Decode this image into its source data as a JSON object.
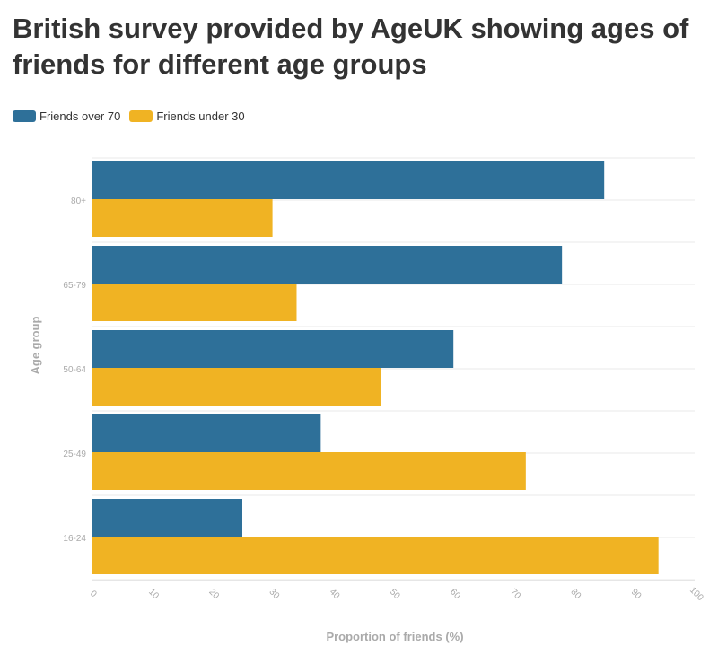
{
  "title": "British survey provided by AgeUK showing ages of friends for different age groups",
  "colors": {
    "over70": "#2e7099",
    "under30": "#f0b323",
    "axis_text": "#aaaaaa",
    "grid": "#e8e8e8",
    "axis": "#cccccc"
  },
  "chart_data": {
    "type": "bar",
    "orientation": "horizontal",
    "title": "British survey provided by AgeUK showing ages of friends for different age groups",
    "xlabel": "Proportion of friends (%)",
    "ylabel": "Age group",
    "categories": [
      "80+",
      "65-79",
      "50-64",
      "25-49",
      "16-24"
    ],
    "series": [
      {
        "name": "Friends over 70",
        "color": "#2e7099",
        "values": [
          85,
          78,
          60,
          38,
          25
        ]
      },
      {
        "name": "Friends under 30",
        "color": "#f0b323",
        "values": [
          30,
          34,
          48,
          72,
          94
        ]
      }
    ],
    "xlim": [
      0,
      100
    ],
    "xticks": [
      "0",
      "10",
      "20",
      "30",
      "40",
      "50",
      "60",
      "70",
      "80",
      "90",
      "100"
    ],
    "legend": "top-left",
    "grid": true
  }
}
